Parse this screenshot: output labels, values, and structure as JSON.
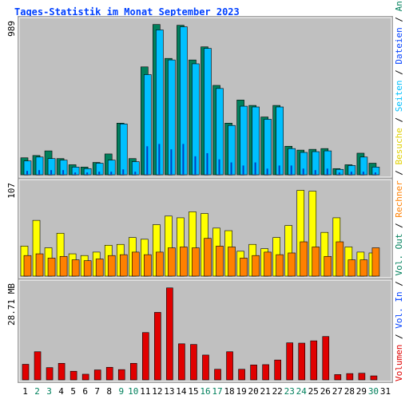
{
  "title": "Tages-Statistik im Monat September 2023",
  "colors": {
    "panel": "#c0c0c0",
    "frame": "#d8d8d8",
    "title": "#0040ff",
    "requests": "#00805c",
    "files": "#00c0ff",
    "pages": "#0040c0",
    "visits": "#ffff00",
    "hosts": "#ff8000",
    "volume_out": "#0040ff",
    "volume": "#e00000",
    "weekday_label": "#000000",
    "weekend_label": "#00805c"
  },
  "chart_data": [
    {
      "type": "bar",
      "panel": "top",
      "ymax_label": "989",
      "ylim": [
        0,
        989
      ],
      "categories": [
        "1",
        "2",
        "3",
        "4",
        "5",
        "6",
        "7",
        "8",
        "9",
        "10",
        "11",
        "12",
        "13",
        "14",
        "15",
        "16",
        "17",
        "18",
        "19",
        "20",
        "21",
        "22",
        "23",
        "24",
        "25",
        "26",
        "27",
        "28",
        "29",
        "30",
        "31"
      ],
      "legend": [
        "Anfragen",
        "Dateien",
        "Seiten"
      ],
      "series": [
        {
          "name": "Anfragen",
          "values": [
            110,
            125,
            155,
            105,
            65,
            50,
            80,
            135,
            335,
            105,
            700,
            975,
            755,
            970,
            745,
            830,
            580,
            335,
            485,
            450,
            375,
            450,
            185,
            160,
            165,
            170,
            40,
            65,
            140,
            75,
            0
          ]
        },
        {
          "name": "Dateien",
          "values": [
            90,
            115,
            105,
            95,
            50,
            40,
            75,
            95,
            330,
            85,
            650,
            940,
            745,
            960,
            720,
            820,
            560,
            320,
            445,
            440,
            360,
            440,
            170,
            145,
            150,
            155,
            35,
            60,
            115,
            50,
            0
          ]
        },
        {
          "name": "Seiten",
          "values": [
            25,
            30,
            30,
            30,
            15,
            15,
            20,
            20,
            35,
            20,
            185,
            200,
            165,
            200,
            120,
            140,
            100,
            80,
            60,
            80,
            40,
            60,
            60,
            40,
            30,
            40,
            15,
            20,
            20,
            15,
            0
          ]
        }
      ]
    },
    {
      "type": "bar",
      "panel": "middle",
      "ymax_label": "107",
      "ylim": [
        0,
        107
      ],
      "legend": [
        "Besuche",
        "Rechner"
      ],
      "series": [
        {
          "name": "Besuche",
          "values": [
            35,
            65,
            33,
            50,
            26,
            24,
            28,
            36,
            37,
            45,
            43,
            60,
            70,
            68,
            75,
            73,
            56,
            53,
            29,
            37,
            32,
            45,
            59,
            100,
            99,
            51,
            68,
            34,
            28,
            27,
            0
          ]
        },
        {
          "name": "Rechner",
          "values": [
            24,
            26,
            21,
            23,
            19,
            18,
            20,
            24,
            25,
            28,
            25,
            28,
            33,
            34,
            33,
            44,
            35,
            34,
            21,
            24,
            28,
            25,
            27,
            40,
            34,
            23,
            40,
            19,
            19,
            33,
            0
          ]
        }
      ]
    },
    {
      "type": "bar",
      "panel": "bottom",
      "ymax_label": "28.71 MB",
      "ylim": [
        0,
        28.71
      ],
      "legend": [
        "Vol. Out",
        "Vol. In",
        "Volumen"
      ],
      "series": [
        {
          "name": "Volumen",
          "values": [
            4.7,
            8.5,
            3.7,
            5.0,
            2.6,
            1.7,
            3.0,
            3.8,
            3.1,
            5.0,
            14.3,
            20.4,
            27.8,
            10.9,
            10.7,
            7.5,
            3.2,
            8.5,
            3.2,
            4.5,
            4.6,
            6.0,
            11.2,
            11.1,
            11.8,
            13.1,
            1.6,
            1.9,
            2.0,
            1.2,
            0
          ]
        },
        {
          "name": "Vol. Out",
          "values": [
            0,
            0,
            0,
            0,
            0,
            0,
            0,
            0,
            0,
            0,
            0,
            0,
            0,
            0,
            0,
            0,
            0,
            0,
            0,
            0,
            0,
            0,
            0,
            0,
            0,
            0,
            0,
            0,
            0,
            0,
            0
          ]
        },
        {
          "name": "Vol. In",
          "values": [
            0,
            0,
            0,
            0,
            0,
            0,
            0,
            0,
            0,
            0,
            0,
            0,
            0,
            0,
            0,
            0,
            0,
            0,
            0,
            0,
            0,
            0,
            0,
            0,
            0,
            0,
            0,
            0,
            0,
            0,
            0
          ]
        }
      ]
    }
  ],
  "weekend_days": [
    "2",
    "3",
    "9",
    "10",
    "16",
    "17",
    "23",
    "24",
    "30"
  ],
  "right_legend": {
    "requests": "Anfragen",
    "sep1": "/",
    "files": "Dateien",
    "sep2": "/",
    "pages": "Seiten",
    "sep3": "/",
    "visits": "Besuche",
    "sep4": "/",
    "hosts": "Rechner",
    "sep5": "/",
    "volume_out": "Vol. Out",
    "sep6": "/",
    "volume_in": "Vol. In",
    "sep7": "/",
    "volume": "Volumen"
  }
}
